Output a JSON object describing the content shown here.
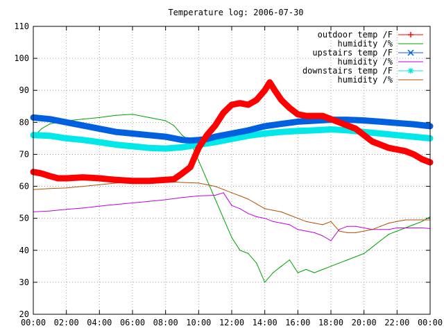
{
  "chart_data": {
    "type": "line",
    "title": "Temperature log: 2006-07-30",
    "xlabel": "",
    "ylabel": "",
    "x_ticks": [
      "00:00",
      "02:00",
      "04:00",
      "06:00",
      "08:00",
      "10:00",
      "12:00",
      "14:00",
      "16:00",
      "18:00",
      "20:00",
      "22:00",
      "00:00"
    ],
    "xlim_hours": [
      0,
      24
    ],
    "ylim": [
      20,
      110
    ],
    "y_ticks": [
      20,
      30,
      40,
      50,
      60,
      70,
      80,
      90,
      100,
      110
    ],
    "grid": true,
    "legend_position": "top-right",
    "series": [
      {
        "name": "outdoor temp /F",
        "color": "#ff0000",
        "marker": "plus",
        "x": [
          0,
          0.5,
          1,
          1.5,
          2,
          3,
          4,
          5,
          6,
          7,
          8,
          8.5,
          9,
          9.5,
          10,
          10.5,
          11,
          11.5,
          12,
          12.5,
          13,
          13.5,
          14,
          14.3,
          14.6,
          15,
          15.5,
          16,
          16.5,
          17,
          17.5,
          18,
          18.5,
          19,
          19.5,
          20,
          20.5,
          21,
          21.5,
          22,
          22.5,
          23,
          23.5,
          24
        ],
        "values": [
          64.5,
          64,
          63.2,
          62.5,
          62.5,
          62.8,
          62.5,
          62,
          61.7,
          61.7,
          62,
          62.2,
          64,
          66,
          72,
          76,
          79,
          83,
          85.5,
          86,
          85.5,
          87,
          90,
          92.5,
          90,
          87,
          84.5,
          82.5,
          82,
          82,
          82,
          81,
          80,
          79,
          78,
          76,
          74,
          73,
          72,
          71.5,
          71,
          70,
          68.5,
          67.5
        ]
      },
      {
        "name": "humidity /%",
        "color": "#00a000",
        "marker": "none",
        "x": [
          0,
          0.5,
          1,
          2,
          3,
          4,
          5,
          6,
          7,
          8,
          8.5,
          9,
          9.5,
          10,
          10.5,
          11,
          11.5,
          12,
          12.5,
          13,
          13.5,
          14,
          14.5,
          15,
          15.5,
          16,
          16.5,
          17,
          17.5,
          18,
          18.5,
          19,
          19.5,
          20,
          20.5,
          21,
          21.5,
          22,
          22.5,
          23,
          23.5,
          24
        ],
        "values": [
          75.5,
          78,
          79.5,
          80.5,
          81,
          81.5,
          82.2,
          82.5,
          81.5,
          80.5,
          79,
          76,
          74,
          68,
          62,
          56,
          50,
          44,
          40,
          39,
          36,
          30,
          33,
          35,
          37,
          33,
          34,
          33,
          34,
          35,
          36,
          37,
          38,
          39,
          41,
          43,
          45,
          46,
          47,
          48,
          49,
          50.5
        ]
      },
      {
        "name": "upstairs temp /F",
        "color": "#0060e0",
        "marker": "cross",
        "x": [
          0,
          1,
          2,
          3,
          4,
          5,
          6,
          7,
          8,
          9,
          9.5,
          10,
          10.5,
          11,
          12,
          13,
          14,
          15,
          16,
          17,
          18,
          19,
          20,
          21,
          22,
          23,
          24
        ],
        "values": [
          81.5,
          81,
          80,
          79,
          78,
          77,
          76.5,
          76,
          75.5,
          74.5,
          74.3,
          74.5,
          74.8,
          75.5,
          76.5,
          77.5,
          78.8,
          79.5,
          80.2,
          80.5,
          80.8,
          80.8,
          80.6,
          80.2,
          79.8,
          79.4,
          78.8
        ]
      },
      {
        "name": "humidity /%",
        "color": "#c000e0",
        "marker": "none",
        "x": [
          0,
          1,
          2,
          3,
          4,
          5,
          6,
          7,
          8,
          9,
          10,
          11,
          11.5,
          12,
          12.5,
          13,
          13.5,
          14,
          14.5,
          15,
          15.5,
          16,
          16.5,
          17,
          17.5,
          18,
          18.5,
          19,
          19.5,
          20,
          20.5,
          21,
          21.5,
          22,
          22.5,
          23,
          23.5,
          24
        ],
        "values": [
          52,
          52.3,
          52.8,
          53.2,
          53.8,
          54.3,
          54.8,
          55.3,
          55.8,
          56.5,
          57,
          57.2,
          58,
          54,
          53,
          51.5,
          50.5,
          50,
          49,
          48.5,
          48,
          46.5,
          46,
          45.5,
          44.5,
          43,
          46.5,
          47.5,
          47.5,
          47,
          46.5,
          46.5,
          46.5,
          47,
          47,
          47,
          47,
          46.8
        ]
      },
      {
        "name": "downstairs temp /F",
        "color": "#00e8e8",
        "marker": "star",
        "x": [
          0,
          1,
          2,
          3,
          4,
          5,
          6,
          7,
          8,
          9,
          10,
          11,
          12,
          13,
          14,
          15,
          16,
          17,
          18,
          19,
          20,
          21,
          22,
          23,
          24
        ],
        "values": [
          76,
          75.8,
          75,
          74.5,
          73.8,
          73,
          72.5,
          72,
          71.8,
          72.2,
          73,
          73.8,
          74.8,
          75.8,
          76.5,
          77,
          77.3,
          77.5,
          77.8,
          77.5,
          77,
          76.5,
          76,
          75.5,
          75
        ]
      },
      {
        "name": "humidity /%",
        "color": "#b05000",
        "marker": "none",
        "x": [
          0,
          1,
          2,
          3,
          4,
          5,
          6,
          7,
          8,
          9,
          10,
          10.5,
          11,
          11.5,
          12,
          12.5,
          13,
          13.5,
          14,
          14.5,
          15,
          15.5,
          16,
          16.5,
          17,
          17.5,
          18,
          18.5,
          19,
          19.5,
          20,
          20.5,
          21,
          21.5,
          22,
          22.5,
          23,
          23.5,
          24
        ],
        "values": [
          59,
          59.3,
          59.5,
          60,
          60.5,
          61,
          61.2,
          61.5,
          61.5,
          61.2,
          61,
          60.5,
          60,
          59,
          58,
          57,
          56,
          54.5,
          53,
          52.5,
          52,
          51,
          50,
          49,
          48.5,
          48,
          49,
          46,
          45.5,
          45.5,
          46,
          46.5,
          47.5,
          48.5,
          49,
          49.5,
          49.5,
          49.5,
          49.5
        ]
      }
    ]
  }
}
